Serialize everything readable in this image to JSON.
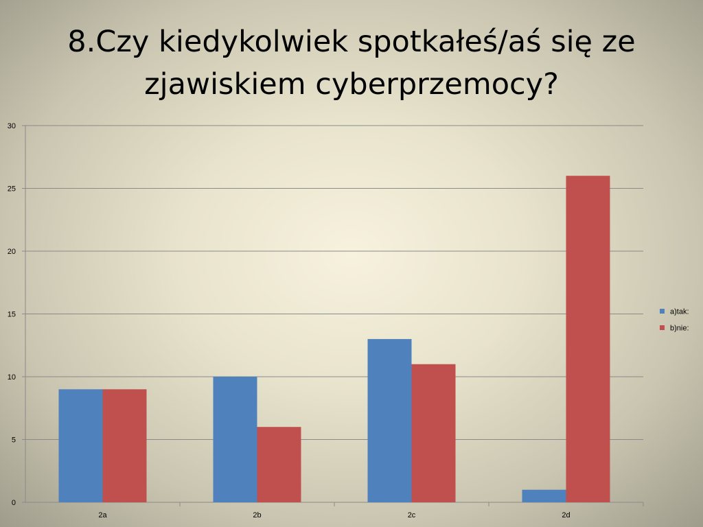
{
  "slide": {
    "title": "8.Czy kiedykolwiek spotkałeś/aś się ze zjawiskiem cyberprzemocy?"
  },
  "chart_data": {
    "type": "bar",
    "title": "",
    "xlabel": "",
    "ylabel": "",
    "categories": [
      "2a",
      "2b",
      "2c",
      "2d"
    ],
    "series": [
      {
        "name": "a)tak:",
        "values": [
          9,
          10,
          13,
          1
        ],
        "color": "#4f81bd"
      },
      {
        "name": "b)nie:",
        "values": [
          9,
          6,
          11,
          26
        ],
        "color": "#c0504d"
      }
    ],
    "ylim": [
      0,
      30
    ],
    "yticks": [
      0,
      5,
      10,
      15,
      20,
      25,
      30
    ],
    "grid": true,
    "legend": "right"
  }
}
